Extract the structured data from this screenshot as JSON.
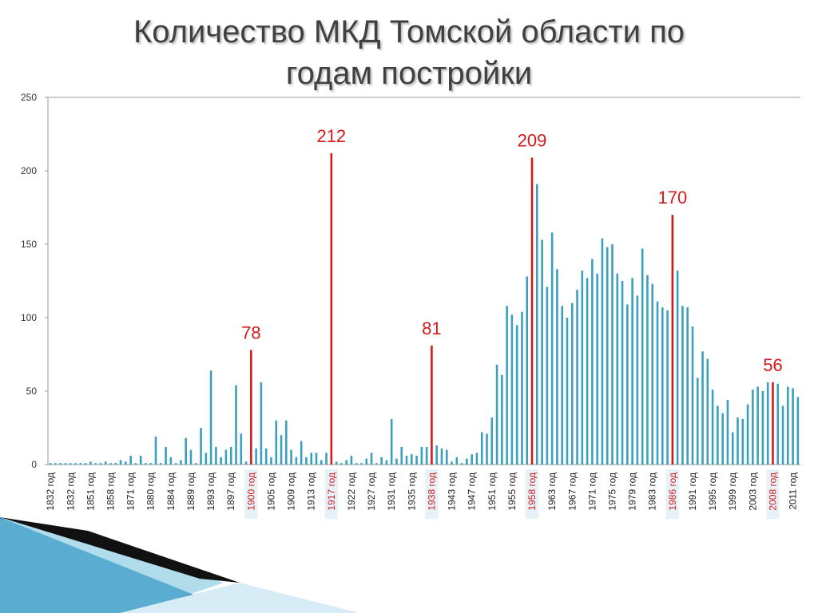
{
  "chart_data": {
    "type": "bar",
    "title": "Количество МКД Томской области по годам постройки",
    "categories": [
      "1832 год",
      null,
      null,
      null,
      "1832 год",
      null,
      null,
      null,
      "1851 год",
      null,
      null,
      null,
      "1858 год",
      null,
      null,
      null,
      "1871 год",
      null,
      null,
      null,
      "1880 год",
      null,
      null,
      null,
      "1884 год",
      null,
      null,
      null,
      "1889 год",
      null,
      null,
      null,
      "1893 год",
      null,
      null,
      null,
      "1897 год",
      null,
      null,
      null,
      "1900 год",
      null,
      null,
      null,
      "1905 год",
      null,
      null,
      null,
      "1909 год",
      null,
      null,
      null,
      "1913 год",
      null,
      null,
      null,
      "1917 год",
      null,
      null,
      null,
      "1922 год",
      null,
      null,
      null,
      "1927 год",
      null,
      null,
      null,
      "1931 год",
      null,
      null,
      null,
      "1935 год",
      null,
      null,
      null,
      "1938 год",
      null,
      null,
      null,
      "1943 год",
      null,
      null,
      null,
      "1947 год",
      null,
      null,
      null,
      "1951 год",
      null,
      null,
      null,
      "1955 год",
      null,
      null,
      null,
      "1958 год",
      null,
      null,
      null,
      "1963 год",
      null,
      null,
      null,
      "1967 год",
      null,
      null,
      null,
      "1971 год",
      null,
      null,
      null,
      "1975 год",
      null,
      null,
      null,
      "1979 год",
      null,
      null,
      null,
      "1983 год",
      null,
      null,
      null,
      "1986 год",
      null,
      null,
      null,
      "1991 год",
      null,
      null,
      null,
      "1995 год",
      null,
      null,
      null,
      "1999 год",
      null,
      null,
      null,
      "2003 год",
      null,
      null,
      null,
      "2008 год",
      null,
      null,
      null,
      "2011 год",
      null
    ],
    "series": [
      {
        "color": "#3aa0bd",
        "values": [
          1,
          1,
          1,
          1,
          1,
          1,
          1,
          1,
          2,
          1,
          1,
          2,
          1,
          1,
          3,
          2,
          6,
          1,
          6,
          1,
          1,
          19,
          1,
          12,
          5,
          1,
          3,
          18,
          10,
          1,
          25,
          8,
          64,
          12,
          5,
          10,
          12,
          54,
          21,
          2,
          null,
          11,
          56,
          11,
          5,
          30,
          20,
          30,
          10,
          5,
          16,
          5,
          8,
          8,
          3,
          8,
          null,
          2,
          1,
          3,
          6,
          1,
          1,
          4,
          8,
          1,
          5,
          3,
          31,
          4,
          12,
          6,
          7,
          6,
          12,
          12,
          null,
          13,
          11,
          10,
          2,
          5,
          1,
          4,
          7,
          8,
          22,
          21,
          32,
          68,
          61,
          108,
          102,
          95,
          104,
          128,
          null,
          191,
          153,
          121,
          158,
          133,
          108,
          100,
          110,
          119,
          132,
          127,
          140,
          130,
          154,
          148,
          150,
          130,
          125,
          109,
          127,
          115,
          147,
          129,
          123,
          111,
          107,
          105,
          null,
          132,
          108,
          107,
          94,
          59,
          77,
          72,
          51,
          40,
          35,
          44,
          22,
          32,
          31,
          41,
          51,
          53,
          50,
          56,
          null,
          55,
          40,
          53,
          52,
          46
        ]
      },
      {
        "color": "#d7191c",
        "values": [
          null,
          null,
          null,
          null,
          null,
          null,
          null,
          null,
          null,
          null,
          null,
          null,
          null,
          null,
          null,
          null,
          null,
          null,
          null,
          null,
          null,
          null,
          null,
          null,
          null,
          null,
          null,
          null,
          null,
          null,
          null,
          null,
          null,
          null,
          null,
          null,
          null,
          null,
          null,
          null,
          78,
          null,
          null,
          null,
          null,
          null,
          null,
          null,
          null,
          null,
          null,
          null,
          null,
          null,
          null,
          null,
          212,
          null,
          null,
          null,
          null,
          null,
          null,
          null,
          null,
          null,
          null,
          null,
          null,
          null,
          null,
          null,
          null,
          null,
          null,
          null,
          81,
          null,
          null,
          null,
          null,
          null,
          null,
          null,
          null,
          null,
          null,
          null,
          null,
          null,
          null,
          null,
          null,
          null,
          null,
          null,
          209,
          null,
          null,
          null,
          null,
          null,
          null,
          null,
          null,
          null,
          null,
          null,
          null,
          null,
          null,
          null,
          null,
          null,
          null,
          null,
          null,
          null,
          null,
          null,
          null,
          null,
          null,
          null,
          170,
          null,
          null,
          null,
          null,
          null,
          null,
          null,
          null,
          null,
          null,
          null,
          null,
          null,
          null,
          null,
          null,
          null,
          null,
          null,
          56,
          null,
          null,
          null,
          null,
          null
        ]
      }
    ],
    "ylim": [
      0,
      250
    ],
    "yticks": [
      0,
      50,
      100,
      150,
      200,
      250
    ],
    "grid": false
  }
}
